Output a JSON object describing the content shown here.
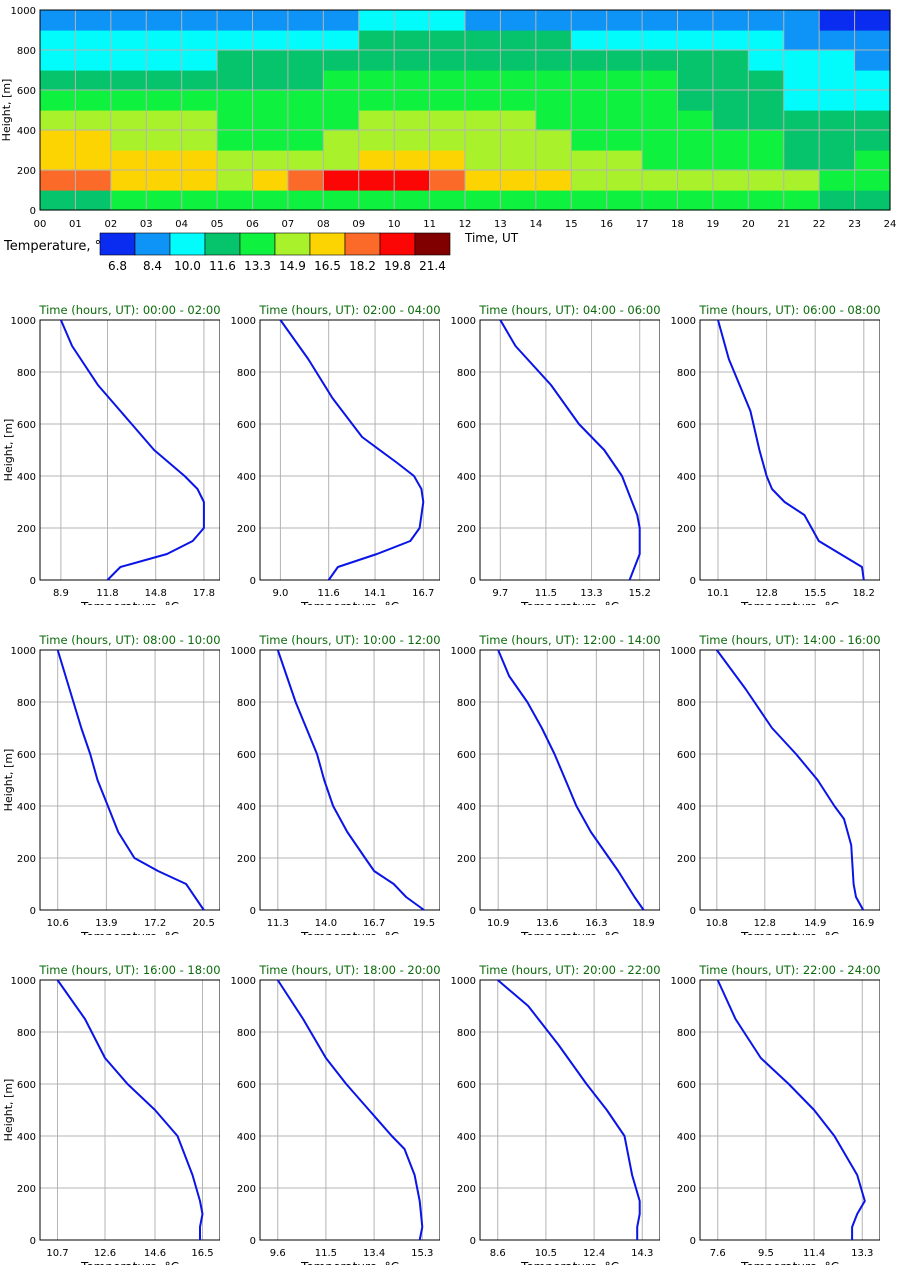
{
  "heatmap": {
    "ylabel": "Height, [m]",
    "xlabel": "Time, UT",
    "y_ticks": [
      0,
      200,
      400,
      600,
      800,
      1000
    ],
    "x_ticks": [
      "00",
      "01",
      "02",
      "03",
      "04",
      "05",
      "06",
      "07",
      "08",
      "09",
      "10",
      "11",
      "12",
      "13",
      "14",
      "15",
      "16",
      "17",
      "18",
      "19",
      "20",
      "21",
      "22",
      "23",
      "24"
    ],
    "legend_title": "Temperature, °C",
    "legend_values": [
      "6.8",
      "8.4",
      "10.0",
      "11.6",
      "13.3",
      "14.9",
      "16.5",
      "18.2",
      "19.8",
      "21.4"
    ],
    "legend_colors": [
      "#0a2cf0",
      "#0e94f6",
      "#02fcfc",
      "#06c46b",
      "#0ef23f",
      "#a9f22b",
      "#fcd402",
      "#fc6a2a",
      "#fb0505",
      "#800000"
    ]
  },
  "profile_axis_labels": {
    "ylabel": "Height, [m]",
    "xlabel": "Temperature, °C",
    "title_prefix": "Time (hours, UT): "
  },
  "chart_data": [
    {
      "type": "heatmap",
      "xlabel": "Time, UT",
      "ylabel": "Height, [m]",
      "xlim": [
        0,
        24
      ],
      "ylim": [
        0,
        1000
      ],
      "colorbar_label": "Temperature, °C",
      "colorbar_ticks": [
        6.8,
        8.4,
        10.0,
        11.6,
        13.3,
        14.9,
        16.5,
        18.2,
        19.8,
        21.4
      ],
      "colorbar_colors": [
        "#0a2cf0",
        "#0e94f6",
        "#02fcfc",
        "#06c46b",
        "#0ef23f",
        "#a9f22b",
        "#fcd402",
        "#fc6a2a",
        "#fb0505",
        "#800000"
      ],
      "heights": [
        50,
        150,
        250,
        350,
        450,
        550,
        650,
        750,
        850,
        950
      ],
      "times": [
        0,
        1,
        2,
        3,
        4,
        5,
        6,
        7,
        8,
        9,
        10,
        11,
        12,
        13,
        14,
        15,
        16,
        17,
        18,
        19,
        20,
        21,
        22,
        23
      ],
      "class_grid": [
        [
          3,
          3,
          4,
          4,
          4,
          4,
          4,
          4,
          4,
          4,
          4,
          4,
          4,
          4,
          4,
          4,
          4,
          4,
          4,
          4,
          4,
          4,
          3,
          3
        ],
        [
          7,
          7,
          6,
          6,
          6,
          5,
          6,
          7,
          8,
          8,
          8,
          7,
          6,
          6,
          6,
          5,
          5,
          5,
          5,
          5,
          5,
          5,
          4,
          4
        ],
        [
          6,
          6,
          6,
          6,
          6,
          5,
          5,
          5,
          5,
          6,
          6,
          6,
          5,
          5,
          5,
          5,
          5,
          4,
          4,
          4,
          4,
          3,
          3,
          4
        ],
        [
          6,
          6,
          5,
          5,
          5,
          4,
          4,
          4,
          5,
          5,
          5,
          5,
          5,
          5,
          5,
          4,
          4,
          4,
          4,
          4,
          4,
          3,
          3,
          3
        ],
        [
          5,
          5,
          5,
          5,
          5,
          4,
          4,
          4,
          4,
          5,
          5,
          5,
          5,
          5,
          4,
          4,
          4,
          4,
          4,
          3,
          3,
          3,
          3,
          3
        ],
        [
          4,
          4,
          4,
          4,
          4,
          4,
          4,
          4,
          4,
          4,
          4,
          4,
          4,
          4,
          4,
          4,
          4,
          4,
          3,
          3,
          3,
          2,
          2,
          2
        ],
        [
          3,
          3,
          3,
          3,
          3,
          3,
          3,
          3,
          4,
          4,
          4,
          4,
          4,
          4,
          4,
          4,
          4,
          4,
          3,
          3,
          3,
          2,
          2,
          2
        ],
        [
          2,
          2,
          2,
          2,
          2,
          3,
          3,
          3,
          3,
          3,
          3,
          3,
          3,
          3,
          3,
          3,
          3,
          3,
          3,
          3,
          2,
          2,
          2,
          1
        ],
        [
          2,
          2,
          2,
          2,
          2,
          2,
          2,
          2,
          2,
          3,
          3,
          3,
          3,
          3,
          3,
          2,
          2,
          2,
          2,
          2,
          2,
          1,
          1,
          1
        ],
        [
          1,
          1,
          1,
          1,
          1,
          1,
          1,
          1,
          1,
          2,
          2,
          2,
          1,
          1,
          1,
          1,
          1,
          1,
          1,
          1,
          1,
          1,
          0,
          0
        ]
      ]
    },
    {
      "type": "line",
      "title": "00:00 - 02:00",
      "xlabel": "Temperature, °C",
      "ylabel": "Height, [m]",
      "xticks": [
        8.9,
        11.8,
        14.8,
        17.8
      ],
      "xlim": [
        7.6,
        18.8
      ],
      "ylim": [
        0,
        1000
      ],
      "x": [
        11.8,
        12.6,
        15.5,
        17.1,
        17.8,
        17.8,
        17.4,
        16.6,
        14.7,
        12.6,
        11.2,
        9.6,
        8.9
      ],
      "y": [
        0,
        50,
        100,
        150,
        200,
        300,
        350,
        400,
        500,
        650,
        750,
        900,
        1000
      ]
    },
    {
      "type": "line",
      "title": "02:00 - 04:00",
      "xlabel": "Temperature, °C",
      "ylabel": "Height, [m]",
      "xticks": [
        9.0,
        11.6,
        14.1,
        16.7
      ],
      "xlim": [
        7.9,
        17.6
      ],
      "ylim": [
        0,
        1000
      ],
      "x": [
        11.6,
        12.1,
        14.2,
        16.0,
        16.5,
        16.7,
        16.6,
        16.2,
        15.3,
        13.4,
        11.8,
        10.5,
        9.0
      ],
      "y": [
        0,
        50,
        100,
        150,
        200,
        300,
        350,
        400,
        450,
        550,
        700,
        850,
        1000
      ]
    },
    {
      "type": "line",
      "title": "04:00 - 06:00",
      "xlabel": "Temperature, °C",
      "ylabel": "Height, [m]",
      "xticks": [
        9.7,
        11.5,
        13.3,
        15.2
      ],
      "xlim": [
        8.9,
        16.0
      ],
      "ylim": [
        0,
        1000
      ],
      "x": [
        14.8,
        15.2,
        15.2,
        15.1,
        14.9,
        14.5,
        13.8,
        12.8,
        11.7,
        10.3,
        9.7
      ],
      "y": [
        0,
        100,
        200,
        250,
        300,
        400,
        500,
        600,
        750,
        900,
        1000
      ]
    },
    {
      "type": "line",
      "title": "06:00 - 08:00",
      "xlabel": "Temperature, °C",
      "ylabel": "Height, [m]",
      "xticks": [
        10.1,
        12.8,
        15.5,
        18.2
      ],
      "xlim": [
        9.1,
        19.1
      ],
      "ylim": [
        0,
        1000
      ],
      "x": [
        18.2,
        18.1,
        15.7,
        14.9,
        13.8,
        13.1,
        12.8,
        12.4,
        11.9,
        11.3,
        10.7,
        10.1
      ],
      "y": [
        0,
        50,
        150,
        250,
        300,
        350,
        400,
        500,
        650,
        750,
        850,
        1000
      ]
    },
    {
      "type": "line",
      "title": "08:00 - 10:00",
      "xlabel": "Temperature, °C",
      "ylabel": "Height, [m]",
      "xticks": [
        10.6,
        13.9,
        17.2,
        20.5
      ],
      "xlim": [
        9.4,
        21.6
      ],
      "ylim": [
        0,
        1000
      ],
      "x": [
        20.5,
        19.3,
        17.4,
        15.8,
        14.7,
        14.0,
        13.3,
        12.8,
        12.2,
        11.4,
        10.6
      ],
      "y": [
        0,
        100,
        150,
        200,
        300,
        400,
        500,
        600,
        700,
        850,
        1000
      ]
    },
    {
      "type": "line",
      "title": "10:00 - 12:00",
      "xlabel": "Temperature, °C",
      "ylabel": "Height, [m]",
      "xticks": [
        11.3,
        14.0,
        16.7,
        19.5
      ],
      "xlim": [
        10.3,
        20.4
      ],
      "ylim": [
        0,
        1000
      ],
      "x": [
        19.5,
        18.5,
        17.8,
        16.7,
        16.2,
        15.2,
        14.4,
        13.9,
        13.5,
        12.9,
        12.3,
        11.3
      ],
      "y": [
        0,
        50,
        100,
        150,
        200,
        300,
        400,
        500,
        600,
        700,
        800,
        1000
      ]
    },
    {
      "type": "line",
      "title": "12:00 - 14:00",
      "xlabel": "Temperature, °C",
      "ylabel": "Height, [m]",
      "xticks": [
        10.9,
        13.6,
        16.3,
        18.9
      ],
      "xlim": [
        9.9,
        19.8
      ],
      "ylim": [
        0,
        1000
      ],
      "x": [
        18.9,
        18.4,
        17.5,
        16.0,
        15.2,
        14.6,
        14.0,
        13.3,
        12.5,
        11.5,
        10.9
      ],
      "y": [
        0,
        50,
        150,
        300,
        400,
        500,
        600,
        700,
        800,
        900,
        1000
      ]
    },
    {
      "type": "line",
      "title": "14:00 - 16:00",
      "xlabel": "Temperature, °C",
      "ylabel": "Height, [m]",
      "xticks": [
        10.8,
        12.8,
        14.9,
        16.9
      ],
      "xlim": [
        10.1,
        17.6
      ],
      "ylim": [
        0,
        1000
      ],
      "x": [
        16.9,
        16.6,
        16.5,
        16.4,
        16.1,
        15.7,
        15.0,
        14.1,
        13.1,
        12.0,
        10.8
      ],
      "y": [
        0,
        50,
        100,
        250,
        350,
        400,
        500,
        600,
        700,
        850,
        1000
      ]
    },
    {
      "type": "line",
      "title": "16:00 - 18:00",
      "xlabel": "Temperature, °C",
      "ylabel": "Height, [m]",
      "xticks": [
        10.7,
        12.6,
        14.6,
        16.5
      ],
      "xlim": [
        10.0,
        17.2
      ],
      "ylim": [
        0,
        1000
      ],
      "x": [
        16.4,
        16.4,
        16.5,
        16.4,
        16.1,
        15.5,
        14.6,
        13.5,
        12.6,
        11.8,
        10.7
      ],
      "y": [
        0,
        50,
        100,
        150,
        250,
        400,
        500,
        600,
        700,
        850,
        1000
      ]
    },
    {
      "type": "line",
      "title": "18:00 - 20:00",
      "xlabel": "Temperature, °C",
      "ylabel": "Height, [m]",
      "xticks": [
        9.6,
        11.5,
        13.4,
        15.3
      ],
      "xlim": [
        8.9,
        16.0
      ],
      "ylim": [
        0,
        1000
      ],
      "x": [
        15.2,
        15.3,
        15.2,
        15.0,
        14.6,
        14.1,
        13.2,
        12.3,
        11.5,
        10.6,
        9.6
      ],
      "y": [
        0,
        50,
        150,
        250,
        350,
        400,
        500,
        600,
        700,
        850,
        1000
      ]
    },
    {
      "type": "line",
      "title": "20:00 - 22:00",
      "xlabel": "Temperature, °C",
      "ylabel": "Height, [m]",
      "xticks": [
        8.6,
        10.5,
        12.4,
        14.3
      ],
      "xlim": [
        7.9,
        15.0
      ],
      "ylim": [
        0,
        1000
      ],
      "x": [
        14.1,
        14.1,
        14.2,
        14.2,
        13.9,
        13.6,
        12.9,
        12.1,
        11.0,
        9.8,
        8.6
      ],
      "y": [
        0,
        50,
        100,
        150,
        250,
        400,
        500,
        600,
        750,
        900,
        1000
      ]
    },
    {
      "type": "line",
      "title": "22:00 - 24:00",
      "xlabel": "Temperature, °C",
      "ylabel": "Height, [m]",
      "xticks": [
        7.6,
        9.5,
        11.4,
        13.3
      ],
      "xlim": [
        6.9,
        14.0
      ],
      "ylim": [
        0,
        1000
      ],
      "x": [
        12.9,
        12.9,
        13.1,
        13.4,
        13.1,
        12.2,
        11.4,
        10.4,
        9.3,
        8.3,
        7.6
      ],
      "y": [
        0,
        50,
        100,
        150,
        250,
        400,
        500,
        600,
        700,
        850,
        1000
      ]
    }
  ]
}
